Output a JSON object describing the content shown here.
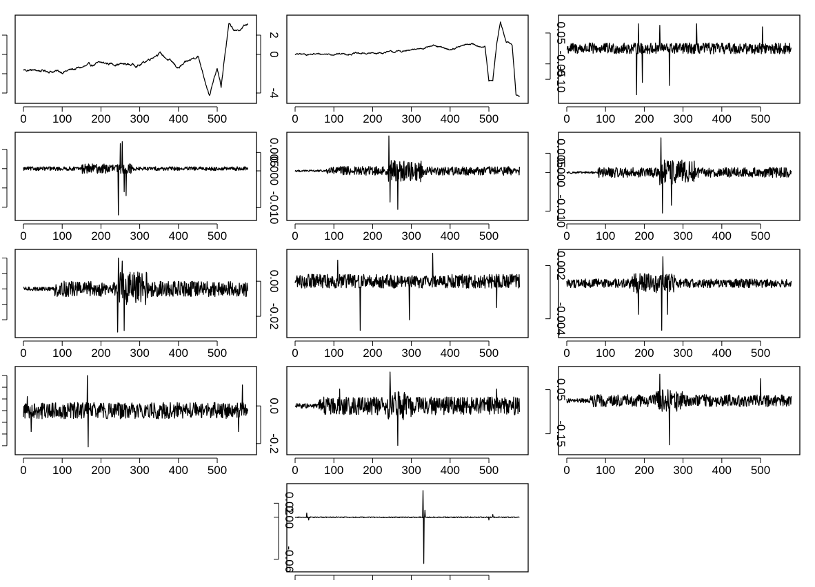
{
  "colors": {
    "line": "#000000",
    "background": "#ffffff",
    "frame": "#000000"
  },
  "chart_data": [
    {
      "type": "line",
      "n": 580,
      "xlim": [
        0,
        580
      ],
      "ylim": [
        -4.5,
        3.5
      ],
      "x_ticks": [
        0,
        100,
        200,
        300,
        400,
        500
      ],
      "x_tick_labels": [
        "0",
        "100",
        "200",
        "300",
        "400",
        "500"
      ],
      "y_ticks": [
        2,
        0,
        -2,
        -4
      ],
      "y_tick_labels": [
        "",
        "",
        "",
        ""
      ],
      "y_axis_side": "left",
      "shape": {
        "kind": "walk",
        "profile": [
          [
            0,
            -1.6
          ],
          [
            100,
            -1.8
          ],
          [
            200,
            -0.9
          ],
          [
            300,
            -1.1
          ],
          [
            350,
            0.2
          ],
          [
            400,
            -1.4
          ],
          [
            450,
            -0.1
          ],
          [
            480,
            -4.2
          ],
          [
            500,
            -1.5
          ],
          [
            510,
            -3.4
          ],
          [
            520,
            0.0
          ],
          [
            530,
            3.1
          ],
          [
            550,
            2.3
          ],
          [
            575,
            3.1
          ]
        ],
        "noise": 0.18
      }
    },
    {
      "type": "line",
      "n": 580,
      "xlim": [
        0,
        580
      ],
      "ylim": [
        -4.5,
        3.5
      ],
      "x_ticks": [
        0,
        100,
        200,
        300,
        400,
        500
      ],
      "x_tick_labels": [
        "0",
        "100",
        "200",
        "300",
        "400",
        "500"
      ],
      "y_ticks": [
        2,
        0,
        -4
      ],
      "y_tick_labels": [
        "2",
        "0",
        "-4"
      ],
      "y_axis_side": "right",
      "shape": {
        "kind": "walk",
        "profile": [
          [
            0,
            0.0
          ],
          [
            200,
            0.1
          ],
          [
            300,
            0.4
          ],
          [
            350,
            0.9
          ],
          [
            400,
            0.5
          ],
          [
            450,
            1.1
          ],
          [
            490,
            0.8
          ],
          [
            500,
            -2.8
          ],
          [
            510,
            -2.8
          ],
          [
            520,
            1.0
          ],
          [
            530,
            3.3
          ],
          [
            545,
            1.3
          ],
          [
            560,
            1.0
          ],
          [
            570,
            -4.2
          ]
        ],
        "noise": 0.12
      }
    },
    {
      "type": "line",
      "n": 580,
      "xlim": [
        0,
        580
      ],
      "ylim": [
        -0.16,
        0.09
      ],
      "x_ticks": [
        0,
        100,
        200,
        300,
        400,
        500
      ],
      "x_tick_labels": [
        "0",
        "100",
        "200",
        "300",
        "400",
        "500"
      ],
      "y_ticks": [
        0.05,
        -0.05,
        -0.1
      ],
      "y_tick_labels": [
        "0.05",
        "-0.05",
        "-0.10"
      ],
      "y_axis_side": "left",
      "shape": {
        "kind": "noise",
        "base": 0.018,
        "spikes": [
          [
            180,
            -0.15
          ],
          [
            185,
            0.08
          ],
          [
            195,
            -0.11
          ],
          [
            240,
            0.075
          ],
          [
            265,
            -0.12
          ],
          [
            335,
            0.08
          ],
          [
            505,
            0.07
          ]
        ]
      }
    },
    {
      "type": "line",
      "n": 580,
      "xlim": [
        0,
        580
      ],
      "ylim": [
        -0.012,
        0.008
      ],
      "x_ticks": [
        0,
        100,
        200,
        300,
        400,
        500
      ],
      "x_tick_labels": [
        "0",
        "100",
        "200",
        "300",
        "400",
        "500"
      ],
      "y_ticks": [
        0.005,
        0,
        -0.005,
        -0.01
      ],
      "y_tick_labels": [
        "",
        "",
        "",
        ""
      ],
      "y_axis_side": "left",
      "shape": {
        "kind": "noise",
        "base": 0.0005,
        "bursts": [
          [
            150,
            280,
            2.5
          ]
        ],
        "spikes": [
          [
            245,
            -0.012
          ],
          [
            250,
            0.0065
          ],
          [
            255,
            0.007
          ],
          [
            260,
            -0.006
          ],
          [
            265,
            -0.007
          ]
        ]
      }
    },
    {
      "type": "line",
      "n": 580,
      "xlim": [
        0,
        580
      ],
      "ylim": [
        -0.012,
        0.009
      ],
      "x_ticks": [
        0,
        100,
        200,
        300,
        400,
        500
      ],
      "x_tick_labels": [
        "0",
        "100",
        "200",
        "300",
        "400",
        "500"
      ],
      "y_ticks": [
        0.005,
        0,
        -0.01
      ],
      "y_tick_labels": [
        "0.005",
        "0.000",
        "-0.010"
      ],
      "y_axis_side": "right",
      "shape": {
        "kind": "noise",
        "base": 0.0012,
        "bursts": [
          [
            0,
            80,
            0.2
          ],
          [
            240,
            330,
            2.5
          ]
        ],
        "spikes": [
          [
            242,
            0.0095
          ],
          [
            245,
            -0.0085
          ],
          [
            265,
            -0.0105
          ]
        ]
      }
    },
    {
      "type": "line",
      "n": 580,
      "xlim": [
        0,
        580
      ],
      "ylim": [
        -0.011,
        0.009
      ],
      "x_ticks": [
        0,
        100,
        200,
        300,
        400,
        500
      ],
      "x_tick_labels": [
        "0",
        "100",
        "200",
        "300",
        "400",
        "500"
      ],
      "y_ticks": [
        0.005,
        0,
        -0.01
      ],
      "y_tick_labels": [
        "0.005",
        "0.000",
        "-0.010"
      ],
      "y_axis_side": "left",
      "shape": {
        "kind": "noise",
        "base": 0.0013,
        "bursts": [
          [
            0,
            80,
            0.2
          ],
          [
            240,
            330,
            2.5
          ]
        ],
        "spikes": [
          [
            243,
            0.009
          ],
          [
            247,
            -0.0105
          ],
          [
            270,
            -0.0085
          ]
        ]
      }
    },
    {
      "type": "line",
      "n": 580,
      "xlim": [
        0,
        580
      ],
      "ylim": [
        -0.028,
        0.022
      ],
      "x_ticks": [
        0,
        100,
        200,
        300,
        400,
        500
      ],
      "x_tick_labels": [
        "0",
        "100",
        "200",
        "300",
        "400",
        "500"
      ],
      "y_ticks": [
        0.02,
        0.01,
        0,
        -0.01,
        -0.02
      ],
      "y_tick_labels": [
        "",
        "",
        "",
        "",
        ""
      ],
      "y_axis_side": "left",
      "shape": {
        "kind": "noise",
        "base": 0.005,
        "bursts": [
          [
            0,
            80,
            0.25
          ],
          [
            240,
            320,
            2.2
          ]
        ],
        "spikes": [
          [
            243,
            -0.028
          ],
          [
            245,
            0.02
          ],
          [
            260,
            -0.027
          ],
          [
            255,
            0.018
          ]
        ]
      }
    },
    {
      "type": "line",
      "n": 580,
      "xlim": [
        0,
        580
      ],
      "ylim": [
        -0.029,
        0.015
      ],
      "x_ticks": [
        0,
        100,
        200,
        300,
        400,
        500
      ],
      "x_tick_labels": [
        "0",
        "100",
        "200",
        "300",
        "400",
        "500"
      ],
      "y_ticks": [
        0,
        -0.02
      ],
      "y_tick_labels": [
        "0.00",
        "-0.02"
      ],
      "y_axis_side": "right",
      "shape": {
        "kind": "noise",
        "base": 0.004,
        "bursts": [],
        "spikes": [
          [
            168,
            -0.028
          ],
          [
            110,
            0.012
          ],
          [
            295,
            -0.022
          ],
          [
            355,
            0.016
          ],
          [
            520,
            -0.015
          ]
        ]
      }
    },
    {
      "type": "line",
      "n": 580,
      "xlim": [
        0,
        580
      ],
      "ylim": [
        -0.0055,
        0.0032
      ],
      "x_ticks": [
        0,
        100,
        200,
        300,
        400,
        500
      ],
      "x_tick_labels": [
        "0",
        "100",
        "200",
        "300",
        "400",
        "500"
      ],
      "y_ticks": [
        0.002,
        -0.004
      ],
      "y_tick_labels": [
        "0.002",
        "-0.004"
      ],
      "y_axis_side": "left",
      "shape": {
        "kind": "noise",
        "base": 0.0005,
        "bursts": [
          [
            160,
            280,
            2.2
          ]
        ],
        "spikes": [
          [
            185,
            -0.0035
          ],
          [
            245,
            -0.0053
          ],
          [
            248,
            0.003
          ],
          [
            260,
            -0.0035
          ]
        ]
      }
    },
    {
      "type": "line",
      "n": 580,
      "xlim": [
        0,
        580
      ],
      "ylim": [
        -0.33,
        0.33
      ],
      "x_ticks": [
        0,
        100,
        200,
        300,
        400,
        500
      ],
      "x_tick_labels": [
        "0",
        "100",
        "200",
        "300",
        "400",
        "500"
      ],
      "y_ticks": [
        0.3,
        0.2,
        0.1,
        0,
        -0.1,
        -0.2,
        -0.3
      ],
      "y_tick_labels": [
        "",
        "",
        "",
        "",
        "",
        "",
        ""
      ],
      "y_axis_side": "left",
      "shape": {
        "kind": "noise",
        "base": 0.07,
        "bursts": [],
        "spikes": [
          [
            165,
            0.3
          ],
          [
            167,
            -0.31
          ],
          [
            10,
            0.12
          ],
          [
            20,
            -0.18
          ],
          [
            555,
            -0.18
          ],
          [
            565,
            0.22
          ]
        ]
      }
    },
    {
      "type": "line",
      "n": 580,
      "xlim": [
        0,
        580
      ],
      "ylim": [
        -0.23,
        0.18
      ],
      "x_ticks": [
        0,
        100,
        200,
        300,
        400,
        500
      ],
      "x_tick_labels": [
        "0",
        "100",
        "200",
        "300",
        "400",
        "500"
      ],
      "y_ticks": [
        0,
        -0.2
      ],
      "y_tick_labels": [
        "0.0",
        "-0.2"
      ],
      "y_axis_side": "right",
      "shape": {
        "kind": "noise",
        "base": 0.03,
        "bursts": [
          [
            0,
            60,
            0.4
          ],
          [
            60,
            580,
            1.6
          ],
          [
            240,
            300,
            1.6
          ]
        ],
        "spikes": [
          [
            245,
            0.18
          ],
          [
            265,
            -0.21
          ],
          [
            115,
            0.09
          ],
          [
            520,
            0.09
          ]
        ]
      }
    },
    {
      "type": "line",
      "n": 580,
      "xlim": [
        0,
        580
      ],
      "ylim": [
        -0.22,
        0.13
      ],
      "x_ticks": [
        0,
        100,
        200,
        300,
        400,
        500
      ],
      "x_tick_labels": [
        "0",
        "100",
        "200",
        "300",
        "400",
        "500"
      ],
      "y_ticks": [
        0.05,
        -0.15
      ],
      "y_tick_labels": [
        "0.05",
        "-0.15"
      ],
      "y_axis_side": "left",
      "shape": {
        "kind": "noise",
        "base": 0.02,
        "bursts": [
          [
            0,
            60,
            0.5
          ],
          [
            60,
            580,
            1.4
          ],
          [
            230,
            300,
            1.8
          ]
        ],
        "spikes": [
          [
            240,
            0.12
          ],
          [
            265,
            -0.2
          ],
          [
            500,
            0.1
          ]
        ]
      }
    },
    {
      "type": "line",
      "n": 580,
      "xlim": [
        0,
        580
      ],
      "ylim": [
        -0.07,
        0.04
      ],
      "x_ticks": [
        0,
        100,
        200,
        300,
        400,
        500
      ],
      "x_tick_labels": [
        "",
        "",
        "",
        "",
        "",
        ""
      ],
      "y_ticks": [
        0.02,
        0,
        -0.06
      ],
      "y_tick_labels": [
        "0.02",
        "0.00",
        "-0.06"
      ],
      "y_axis_side": "left",
      "shape": {
        "kind": "noise",
        "base": 0.0006,
        "bursts": [],
        "spikes": [
          [
            30,
            0.006
          ],
          [
            35,
            -0.004
          ],
          [
            330,
            0.038
          ],
          [
            332,
            -0.066
          ],
          [
            335,
            0.01
          ],
          [
            500,
            -0.004
          ],
          [
            510,
            0.004
          ]
        ]
      }
    }
  ]
}
